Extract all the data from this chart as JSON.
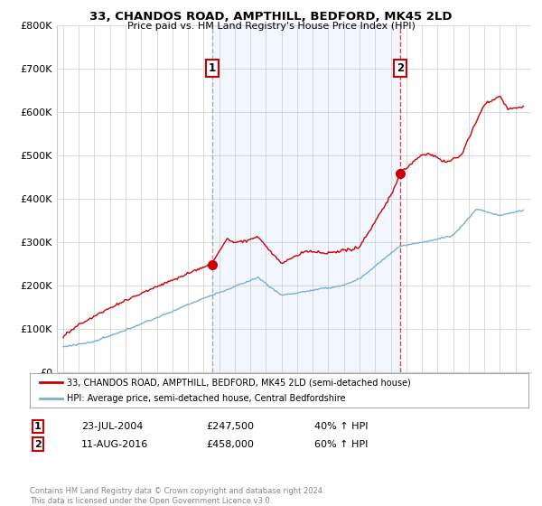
{
  "title": "33, CHANDOS ROAD, AMPTHILL, BEDFORD, MK45 2LD",
  "subtitle": "Price paid vs. HM Land Registry's House Price Index (HPI)",
  "legend_line1": "33, CHANDOS ROAD, AMPTHILL, BEDFORD, MK45 2LD (semi-detached house)",
  "legend_line2": "HPI: Average price, semi-detached house, Central Bedfordshire",
  "footer": "Contains HM Land Registry data © Crown copyright and database right 2024.\nThis data is licensed under the Open Government Licence v3.0.",
  "annotation1_date": "23-JUL-2004",
  "annotation1_price": "£247,500",
  "annotation1_hpi": "40% ↑ HPI",
  "annotation2_date": "11-AUG-2016",
  "annotation2_price": "£458,000",
  "annotation2_hpi": "60% ↑ HPI",
  "red_color": "#cc0000",
  "blue_color": "#7aafd4",
  "shade_color": "#ddeeff",
  "vline1_color": "#aaaaaa",
  "vline2_color": "#dd4444",
  "background_color": "#ffffff",
  "grid_color": "#cccccc",
  "ylim": [
    0,
    800000
  ],
  "yticks": [
    0,
    100000,
    200000,
    300000,
    400000,
    500000,
    600000,
    700000,
    800000
  ],
  "sale1_x": 2004.55,
  "sale1_y": 247500,
  "sale2_x": 2016.61,
  "sale2_y": 458000,
  "xmin": 1995,
  "xmax": 2024.5
}
